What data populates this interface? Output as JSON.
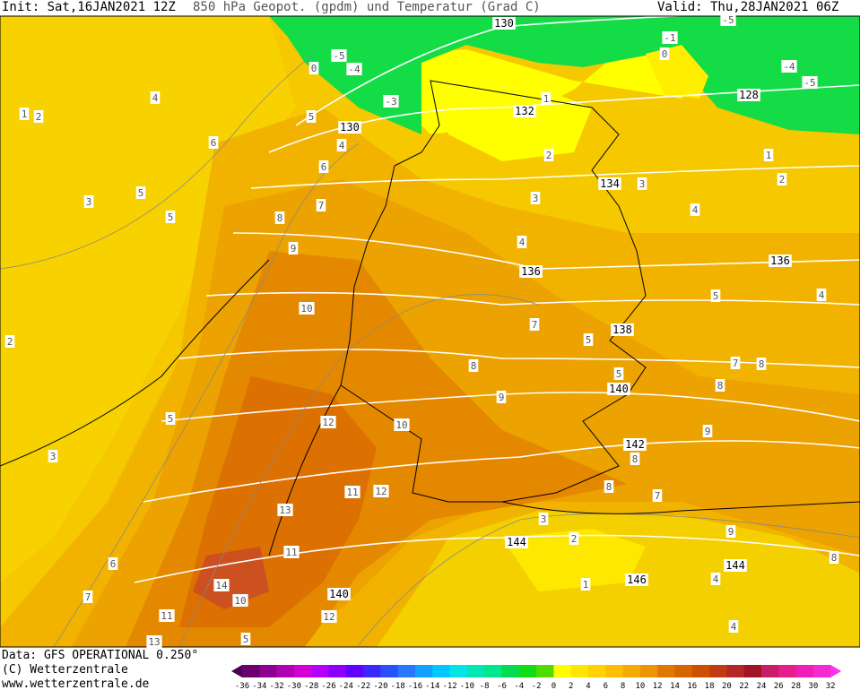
{
  "header": {
    "init": "Init: Sat,16JAN2021 12Z",
    "title": "850 hPa Geopot. (gpdm) und Temperatur (Grad C)",
    "valid": "Valid: Thu,28JAN2021 06Z"
  },
  "footer": {
    "data": "Data: GFS OPERATIONAL 0.250°",
    "copyright": "(C) Wetterzentrale",
    "url": "www.wetterzentrale.de"
  },
  "colorbar": {
    "labels": [
      -36,
      -34,
      -32,
      -30,
      -28,
      -26,
      -24,
      -22,
      -20,
      -18,
      -16,
      -14,
      -12,
      -10,
      -8,
      -6,
      -4,
      -2,
      0,
      2,
      4,
      6,
      8,
      10,
      12,
      14,
      16,
      18,
      20,
      22,
      24,
      26,
      28,
      30,
      32
    ]
  },
  "map": {
    "geopotential_labels": [
      "130",
      "130",
      "132",
      "134",
      "136",
      "136",
      "138",
      "140",
      "142",
      "144",
      "144",
      "146",
      "140",
      "128"
    ],
    "temperature_labels": [
      "-5",
      "-4",
      "-3",
      "0",
      "-1",
      "0",
      "-4",
      "-5",
      "-5",
      "1",
      "2",
      "3",
      "4",
      "5",
      "5",
      "5",
      "4",
      "3",
      "2",
      "1",
      "7",
      "8",
      "9",
      "10",
      "10",
      "8",
      "9",
      "7",
      "6",
      "5",
      "4",
      "4",
      "5",
      "5",
      "3",
      "2",
      "1",
      "6",
      "12",
      "11",
      "12",
      "13",
      "11",
      "14",
      "10",
      "11",
      "12",
      "5",
      "7",
      "6",
      "3",
      "2",
      "5",
      "8",
      "9",
      "8",
      "8",
      "7",
      "9",
      "8",
      "7",
      "8",
      "4",
      "4",
      "4",
      "1",
      "2",
      "3",
      "13"
    ]
  }
}
